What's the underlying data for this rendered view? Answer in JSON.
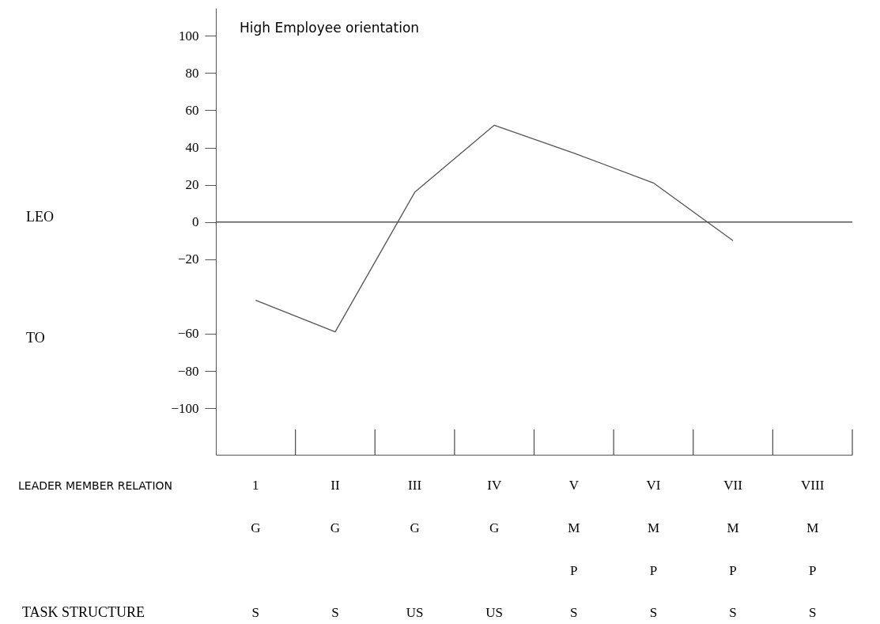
{
  "chart_data": {
    "type": "line",
    "categories": [
      "1",
      "II",
      "III",
      "IV",
      "V",
      "VI",
      "VII",
      "VIII"
    ],
    "series": [
      {
        "color": "#555555",
        "values": [
          -42,
          -59,
          16,
          52,
          37,
          21,
          -10,
          null
        ]
      }
    ],
    "ylim": [
      -125,
      115
    ],
    "yticks": [
      100,
      80,
      60,
      40,
      20,
      0,
      -20,
      -60,
      -80,
      -100
    ],
    "ref_lines": [
      {
        "axis": "y",
        "value": 0,
        "color": "#555555"
      }
    ],
    "grid": false,
    "annotations": [
      "High Employee orientation",
      "LEO",
      "TO",
      "LEADER MEMBER RELATION",
      "TASK STRUCTURE",
      "G",
      "G",
      "G",
      "G",
      "M",
      "M",
      "M",
      "M",
      "P",
      "P",
      "P",
      "P",
      "S",
      "S",
      "US",
      "US",
      "S",
      "S",
      "S",
      "S"
    ]
  }
}
